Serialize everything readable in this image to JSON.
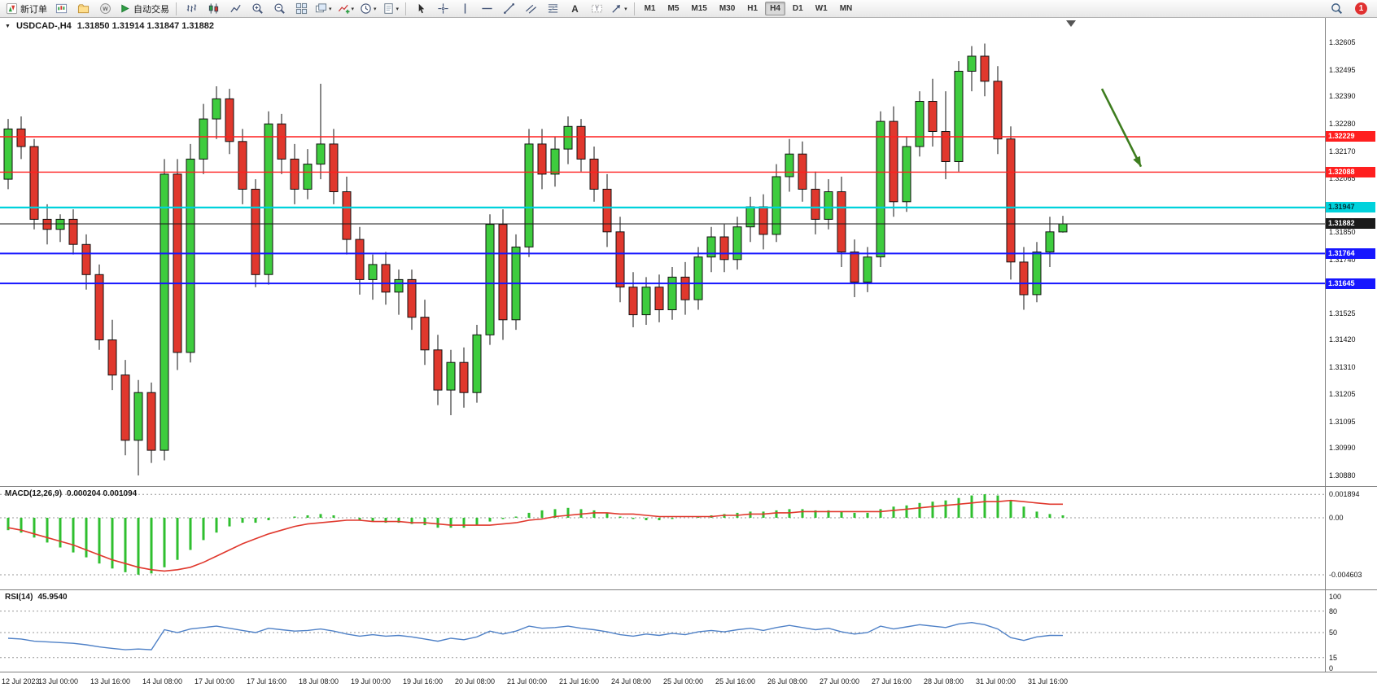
{
  "toolbar": {
    "groups": [
      {
        "items": [
          {
            "name": "new-order-button",
            "icon": "new-order",
            "label": "新订单"
          },
          {
            "name": "new-chart-button",
            "icon": "chart-window"
          },
          {
            "name": "profiles-button",
            "icon": "profiles"
          },
          {
            "name": "community-button",
            "icon": "community"
          },
          {
            "name": "auto-trading-button",
            "icon": "auto-trading",
            "label": "自动交易"
          }
        ]
      },
      {
        "items": [
          {
            "name": "bar-chart-button",
            "icon": "bar-chart"
          },
          {
            "name": "candlestick-button",
            "icon": "candles"
          },
          {
            "name": "line-chart-button",
            "icon": "line-chart"
          },
          {
            "name": "zoom-in-button",
            "icon": "zoom-in"
          },
          {
            "name": "zoom-out-button",
            "icon": "zoom-out"
          },
          {
            "name": "tile-windows-button",
            "icon": "tile"
          },
          {
            "name": "auto-arrange-button",
            "icon": "arrange",
            "caret": true
          },
          {
            "name": "indicators-button",
            "icon": "indicator-add",
            "caret": true
          },
          {
            "name": "periods-button",
            "icon": "clock",
            "caret": true
          },
          {
            "name": "templates-button",
            "icon": "template",
            "caret": true
          }
        ]
      },
      {
        "items": [
          {
            "name": "cursor-button",
            "icon": "cursor"
          },
          {
            "name": "crosshair-button",
            "icon": "crosshair"
          },
          {
            "name": "vertical-line-button",
            "icon": "vline"
          },
          {
            "name": "horizontal-line-button",
            "icon": "hline"
          },
          {
            "name": "trendline-button",
            "icon": "trendline"
          },
          {
            "name": "channel-button",
            "icon": "channel"
          },
          {
            "name": "fibonacci-button",
            "icon": "fibonacci"
          },
          {
            "name": "text-button",
            "icon": "text"
          },
          {
            "name": "text-label-button",
            "icon": "label"
          },
          {
            "name": "shapes-button",
            "icon": "shapes",
            "caret": true
          }
        ]
      }
    ],
    "timeframes": [
      "M1",
      "M5",
      "M15",
      "M30",
      "H1",
      "H4",
      "D1",
      "W1",
      "MN"
    ],
    "active_timeframe": "H4",
    "notification_count": "1"
  },
  "chart_data": {
    "type": "candlestick",
    "symbol_title": "USDCAD-,H4",
    "ohlc_line": "1.31850 1.31914 1.31847 1.31882",
    "colors": {
      "up": "#3ecc3e",
      "down": "#e0382d",
      "wick": "#111111"
    },
    "ylim": [
      1.3088,
      1.32605
    ],
    "price_axis_labels": [
      "1.32605",
      "1.32495",
      "1.32390",
      "1.32280",
      "1.32170",
      "1.32065",
      "1.31955",
      "1.31850",
      "1.31740",
      "1.31635",
      "1.31525",
      "1.31420",
      "1.31310",
      "1.31205",
      "1.31095",
      "1.30990",
      "1.30880"
    ],
    "hlines": [
      {
        "price": 1.32229,
        "label": "1.32229",
        "color": "#ff1f1f",
        "text": "#ffffff",
        "width": 1.4
      },
      {
        "price": 1.32088,
        "label": "1.32088",
        "color": "#ff1f1f",
        "text": "#ffffff",
        "width": 1.4
      },
      {
        "price": 1.31947,
        "label": "1.31947",
        "color": "#00d2dc",
        "text": "#00333a",
        "width": 2.2
      },
      {
        "price": 1.31882,
        "label": "1.31882",
        "color": "#1a1a1a",
        "text": "#ffffff",
        "width": 1
      },
      {
        "price": 1.31764,
        "label": "1.31764",
        "color": "#1616ff",
        "text": "#ffffff",
        "width": 2
      },
      {
        "price": 1.31645,
        "label": "1.31645",
        "color": "#1616ff",
        "text": "#ffffff",
        "width": 2
      }
    ],
    "annotation_arrow": {
      "from_bar": 84,
      "from_price": 1.3242,
      "to_bar": 87,
      "to_price": 1.3211,
      "color": "#3e7d1f"
    },
    "time_labels": [
      "12 Jul 2023",
      "13 Jul 00:00",
      "13 Jul 16:00",
      "14 Jul 08:00",
      "17 Jul 00:00",
      "17 Jul 16:00",
      "18 Jul 08:00",
      "19 Jul 00:00",
      "19 Jul 16:00",
      "20 Jul 08:00",
      "21 Jul 00:00",
      "21 Jul 16:00",
      "24 Jul 08:00",
      "25 Jul 00:00",
      "25 Jul 16:00",
      "26 Jul 08:00",
      "27 Jul 00:00",
      "27 Jul 16:00",
      "28 Jul 08:00",
      "31 Jul 00:00",
      "31 Jul 16:00"
    ],
    "candles": [
      [
        1.3206,
        1.323,
        1.3202,
        1.3226
      ],
      [
        1.3226,
        1.3231,
        1.3214,
        1.3219
      ],
      [
        1.3219,
        1.3222,
        1.3186,
        1.319
      ],
      [
        1.319,
        1.3196,
        1.318,
        1.3186
      ],
      [
        1.3186,
        1.3192,
        1.3181,
        1.319
      ],
      [
        1.319,
        1.3194,
        1.3176,
        1.318
      ],
      [
        1.318,
        1.3184,
        1.3162,
        1.3168
      ],
      [
        1.3168,
        1.3172,
        1.3138,
        1.3142
      ],
      [
        1.3142,
        1.315,
        1.3122,
        1.3128
      ],
      [
        1.3128,
        1.3134,
        1.3096,
        1.3102
      ],
      [
        1.3102,
        1.3126,
        1.3088,
        1.3121
      ],
      [
        1.3121,
        1.3125,
        1.3093,
        1.3098
      ],
      [
        1.3098,
        1.3214,
        1.3094,
        1.3208
      ],
      [
        1.3208,
        1.3214,
        1.313,
        1.3137
      ],
      [
        1.3137,
        1.322,
        1.3133,
        1.3214
      ],
      [
        1.3214,
        1.3236,
        1.3208,
        1.323
      ],
      [
        1.323,
        1.3243,
        1.3222,
        1.3238
      ],
      [
        1.3238,
        1.3242,
        1.3216,
        1.3221
      ],
      [
        1.3221,
        1.3226,
        1.3196,
        1.3202
      ],
      [
        1.3202,
        1.3206,
        1.3163,
        1.3168
      ],
      [
        1.3168,
        1.3233,
        1.3164,
        1.3228
      ],
      [
        1.3228,
        1.3232,
        1.3208,
        1.3214
      ],
      [
        1.3214,
        1.322,
        1.3196,
        1.3202
      ],
      [
        1.3202,
        1.3218,
        1.3198,
        1.3212
      ],
      [
        1.3212,
        1.3244,
        1.3206,
        1.322
      ],
      [
        1.322,
        1.3226,
        1.3196,
        1.3201
      ],
      [
        1.3201,
        1.3207,
        1.3176,
        1.3182
      ],
      [
        1.3182,
        1.3187,
        1.316,
        1.3166
      ],
      [
        1.3166,
        1.3176,
        1.3158,
        1.3172
      ],
      [
        1.3172,
        1.3177,
        1.3156,
        1.3161
      ],
      [
        1.3161,
        1.317,
        1.3152,
        1.3166
      ],
      [
        1.3166,
        1.317,
        1.3146,
        1.3151
      ],
      [
        1.3151,
        1.3158,
        1.3132,
        1.3138
      ],
      [
        1.3138,
        1.3144,
        1.3116,
        1.3122
      ],
      [
        1.3122,
        1.3138,
        1.3112,
        1.3133
      ],
      [
        1.3133,
        1.3139,
        1.3115,
        1.3121
      ],
      [
        1.3121,
        1.3148,
        1.3117,
        1.3144
      ],
      [
        1.3144,
        1.3192,
        1.314,
        1.3188
      ],
      [
        1.3188,
        1.3194,
        1.3142,
        1.315
      ],
      [
        1.315,
        1.3184,
        1.3146,
        1.3179
      ],
      [
        1.3179,
        1.3226,
        1.3175,
        1.322
      ],
      [
        1.322,
        1.3226,
        1.3202,
        1.3208
      ],
      [
        1.3208,
        1.3223,
        1.3203,
        1.3218
      ],
      [
        1.3218,
        1.3231,
        1.3212,
        1.3227
      ],
      [
        1.3227,
        1.323,
        1.3209,
        1.3214
      ],
      [
        1.3214,
        1.3219,
        1.3197,
        1.3202
      ],
      [
        1.3202,
        1.3208,
        1.3179,
        1.3185
      ],
      [
        1.3185,
        1.3191,
        1.3157,
        1.3163
      ],
      [
        1.3163,
        1.3169,
        1.3147,
        1.3152
      ],
      [
        1.3152,
        1.3167,
        1.3148,
        1.3163
      ],
      [
        1.3163,
        1.3168,
        1.3149,
        1.3154
      ],
      [
        1.3154,
        1.3171,
        1.315,
        1.3167
      ],
      [
        1.3167,
        1.3173,
        1.3152,
        1.3158
      ],
      [
        1.3158,
        1.3179,
        1.3154,
        1.3175
      ],
      [
        1.3175,
        1.3187,
        1.3169,
        1.3183
      ],
      [
        1.3183,
        1.3188,
        1.3169,
        1.3174
      ],
      [
        1.3174,
        1.3191,
        1.317,
        1.3187
      ],
      [
        1.3187,
        1.3199,
        1.3181,
        1.3195
      ],
      [
        1.3195,
        1.32,
        1.3178,
        1.3184
      ],
      [
        1.3184,
        1.3212,
        1.3181,
        1.3207
      ],
      [
        1.3207,
        1.3222,
        1.3201,
        1.3216
      ],
      [
        1.3216,
        1.3221,
        1.3197,
        1.3202
      ],
      [
        1.3202,
        1.3209,
        1.3184,
        1.319
      ],
      [
        1.319,
        1.3206,
        1.3186,
        1.3201
      ],
      [
        1.3201,
        1.3207,
        1.3171,
        1.3177
      ],
      [
        1.3177,
        1.3182,
        1.3159,
        1.3165
      ],
      [
        1.3165,
        1.3179,
        1.3161,
        1.3175
      ],
      [
        1.3175,
        1.3233,
        1.3171,
        1.3229
      ],
      [
        1.3229,
        1.3235,
        1.3191,
        1.3197
      ],
      [
        1.3197,
        1.3223,
        1.3193,
        1.3219
      ],
      [
        1.3219,
        1.3241,
        1.3215,
        1.3237
      ],
      [
        1.3237,
        1.3246,
        1.3219,
        1.3225
      ],
      [
        1.3225,
        1.3241,
        1.3206,
        1.3213
      ],
      [
        1.3213,
        1.3253,
        1.3209,
        1.3249
      ],
      [
        1.3249,
        1.3259,
        1.3241,
        1.3255
      ],
      [
        1.3255,
        1.326,
        1.3239,
        1.3245
      ],
      [
        1.3245,
        1.3251,
        1.3216,
        1.3222
      ],
      [
        1.3222,
        1.3227,
        1.3166,
        1.3173
      ],
      [
        1.3173,
        1.3179,
        1.3154,
        1.316
      ],
      [
        1.316,
        1.3181,
        1.3157,
        1.3177
      ],
      [
        1.3177,
        1.3191,
        1.3171,
        1.3185
      ],
      [
        1.3185,
        1.31914,
        1.31847,
        1.31882
      ]
    ],
    "macd": {
      "label": "MACD(12,26,9)",
      "values_text": "0.000204 0.001094",
      "hist_color": "#2fbf2f",
      "signal_color": "#e0382d",
      "axis_labels": [
        {
          "v": 0.001894,
          "t": "0.001894"
        },
        {
          "v": 0,
          "t": "0.00"
        },
        {
          "v": -0.004603,
          "t": "-0.004603"
        }
      ],
      "histogram": [
        -0.001,
        -0.0012,
        -0.0016,
        -0.002,
        -0.0024,
        -0.0028,
        -0.0032,
        -0.0037,
        -0.0041,
        -0.0044,
        -0.0046,
        -0.0045,
        -0.004,
        -0.0034,
        -0.0026,
        -0.0018,
        -0.0012,
        -0.0007,
        -0.0004,
        -0.0004,
        -0.0002,
        0.0,
        0.0001,
        0.0002,
        0.0003,
        0.0002,
        0.0,
        -0.0002,
        -0.0003,
        -0.0004,
        -0.0004,
        -0.0005,
        -0.0006,
        -0.0008,
        -0.0008,
        -0.0008,
        -0.0006,
        -0.0003,
        -0.0001,
        0.0001,
        0.0004,
        0.0006,
        0.0007,
        0.0008,
        0.0007,
        0.0006,
        0.0004,
        0.0001,
        -0.0001,
        -0.0002,
        -0.0002,
        -0.0001,
        0.0,
        0.0001,
        0.0002,
        0.0003,
        0.0004,
        0.0005,
        0.0005,
        0.0006,
        0.0007,
        0.0007,
        0.0006,
        0.0006,
        0.0005,
        0.0004,
        0.0004,
        0.0007,
        0.0009,
        0.001,
        0.0012,
        0.0013,
        0.0014,
        0.0016,
        0.0018,
        0.0019,
        0.0018,
        0.0014,
        0.0009,
        0.0005,
        0.0003,
        0.0002
      ],
      "signal": [
        -0.0008,
        -0.001,
        -0.0013,
        -0.0016,
        -0.0019,
        -0.0022,
        -0.0026,
        -0.003,
        -0.0034,
        -0.0037,
        -0.004,
        -0.0042,
        -0.0043,
        -0.0042,
        -0.004,
        -0.0036,
        -0.0031,
        -0.0026,
        -0.0021,
        -0.0017,
        -0.0013,
        -0.001,
        -0.0007,
        -0.0005,
        -0.0004,
        -0.0003,
        -0.0002,
        -0.0002,
        -0.0003,
        -0.0003,
        -0.0003,
        -0.0004,
        -0.0004,
        -0.0005,
        -0.0006,
        -0.0006,
        -0.0006,
        -0.0006,
        -0.0005,
        -0.0004,
        -0.0002,
        -0.0001,
        0.0001,
        0.0002,
        0.0003,
        0.0004,
        0.0004,
        0.0003,
        0.0003,
        0.0002,
        0.0001,
        0.0001,
        0.0001,
        0.0001,
        0.0001,
        0.0002,
        0.0002,
        0.0003,
        0.0003,
        0.0004,
        0.0004,
        0.0005,
        0.0005,
        0.0005,
        0.0005,
        0.0005,
        0.0005,
        0.0005,
        0.0006,
        0.0007,
        0.0008,
        0.0009,
        0.001,
        0.0011,
        0.0012,
        0.0013,
        0.0013,
        0.0014,
        0.0013,
        0.0012,
        0.0011,
        0.0011
      ]
    },
    "rsi": {
      "label": "RSI(14)",
      "value_text": "45.9540",
      "color": "#4f81c7",
      "axis_labels": [
        {
          "v": 100,
          "t": "100"
        },
        {
          "v": 80,
          "t": "80"
        },
        {
          "v": 50,
          "t": "50"
        },
        {
          "v": 15,
          "t": "15"
        },
        {
          "v": 0,
          "t": "0"
        }
      ],
      "levels": [
        80,
        50,
        15
      ],
      "values": [
        42,
        41,
        38,
        37,
        36,
        35,
        33,
        30,
        28,
        26,
        27,
        26,
        54,
        50,
        55,
        57,
        59,
        56,
        53,
        50,
        56,
        54,
        52,
        53,
        55,
        52,
        48,
        45,
        47,
        45,
        46,
        44,
        41,
        38,
        42,
        40,
        44,
        52,
        48,
        52,
        59,
        56,
        57,
        59,
        56,
        54,
        51,
        47,
        45,
        48,
        46,
        49,
        47,
        51,
        53,
        51,
        54,
        56,
        53,
        57,
        60,
        57,
        54,
        56,
        51,
        48,
        50,
        59,
        55,
        58,
        61,
        59,
        57,
        62,
        64,
        61,
        55,
        43,
        39,
        44,
        46,
        45.95
      ]
    }
  }
}
